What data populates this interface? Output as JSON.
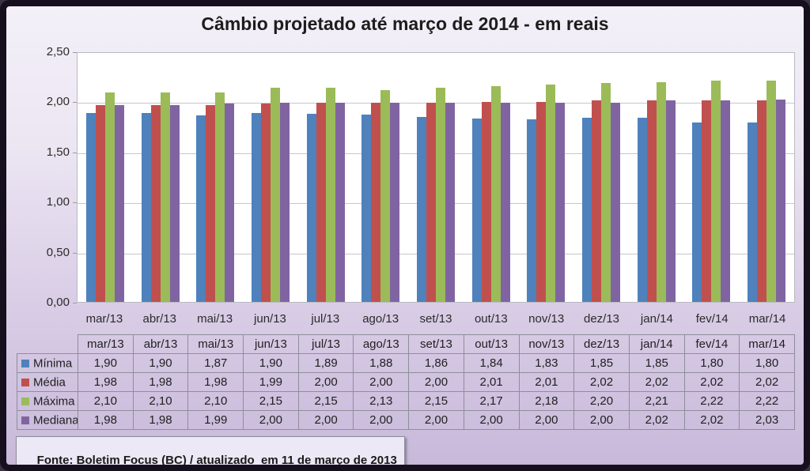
{
  "title": "Câmbio projetado até março de 2014 - em reais",
  "footer": "Fonte: Boletim Focus (BC) / atualizado  em 11 de março de 2013",
  "chart_data": {
    "type": "bar",
    "title": "Câmbio projetado até março de 2014 - em reais",
    "xlabel": "",
    "ylabel": "",
    "ylim": [
      0,
      2.5
    ],
    "grid": true,
    "legend_position": "keys-in-data-table",
    "y_ticks": [
      "2,50",
      "2,00",
      "1,50",
      "1,00",
      "0,50",
      "0,00"
    ],
    "categories": [
      "mar/13",
      "abr/13",
      "mai/13",
      "jun/13",
      "jul/13",
      "ago/13",
      "set/13",
      "out/13",
      "nov/13",
      "dez/13",
      "jan/14",
      "fev/14",
      "mar/14"
    ],
    "series": [
      {
        "name": "Mínima",
        "color": "#4F81BD",
        "values": [
          1.9,
          1.9,
          1.87,
          1.9,
          1.89,
          1.88,
          1.86,
          1.84,
          1.83,
          1.85,
          1.85,
          1.8,
          1.8
        ]
      },
      {
        "name": "Média",
        "color": "#C0504D",
        "values": [
          1.98,
          1.98,
          1.98,
          1.99,
          2.0,
          2.0,
          2.0,
          2.01,
          2.01,
          2.02,
          2.02,
          2.02,
          2.02
        ]
      },
      {
        "name": "Máxima",
        "color": "#9BBB59",
        "values": [
          2.1,
          2.1,
          2.1,
          2.15,
          2.15,
          2.13,
          2.15,
          2.17,
          2.18,
          2.2,
          2.21,
          2.22,
          2.22
        ]
      },
      {
        "name": "Mediana",
        "color": "#8064A2",
        "values": [
          1.98,
          1.98,
          1.99,
          2.0,
          2.0,
          2.0,
          2.0,
          2.0,
          2.0,
          2.0,
          2.02,
          2.02,
          2.03
        ]
      }
    ]
  },
  "table": {
    "header": [
      "mar/13",
      "abr/13",
      "mai/13",
      "jun/13",
      "jul/13",
      "ago/13",
      "set/13",
      "out/13",
      "nov/13",
      "dez/13",
      "jan/14",
      "fev/14",
      "mar/14"
    ],
    "rows": [
      {
        "label": "Mínima",
        "values": [
          "1,90",
          "1,90",
          "1,87",
          "1,90",
          "1,89",
          "1,88",
          "1,86",
          "1,84",
          "1,83",
          "1,85",
          "1,85",
          "1,80",
          "1,80"
        ]
      },
      {
        "label": "Média",
        "values": [
          "1,98",
          "1,98",
          "1,98",
          "1,99",
          "2,00",
          "2,00",
          "2,00",
          "2,01",
          "2,01",
          "2,02",
          "2,02",
          "2,02",
          "2,02"
        ]
      },
      {
        "label": "Máxima",
        "values": [
          "2,10",
          "2,10",
          "2,10",
          "2,15",
          "2,15",
          "2,13",
          "2,15",
          "2,17",
          "2,18",
          "2,20",
          "2,21",
          "2,22",
          "2,22"
        ]
      },
      {
        "label": "Mediana",
        "values": [
          "1,98",
          "1,98",
          "1,99",
          "2,00",
          "2,00",
          "2,00",
          "2,00",
          "2,00",
          "2,00",
          "2,00",
          "2,02",
          "2,02",
          "2,03"
        ]
      }
    ]
  }
}
